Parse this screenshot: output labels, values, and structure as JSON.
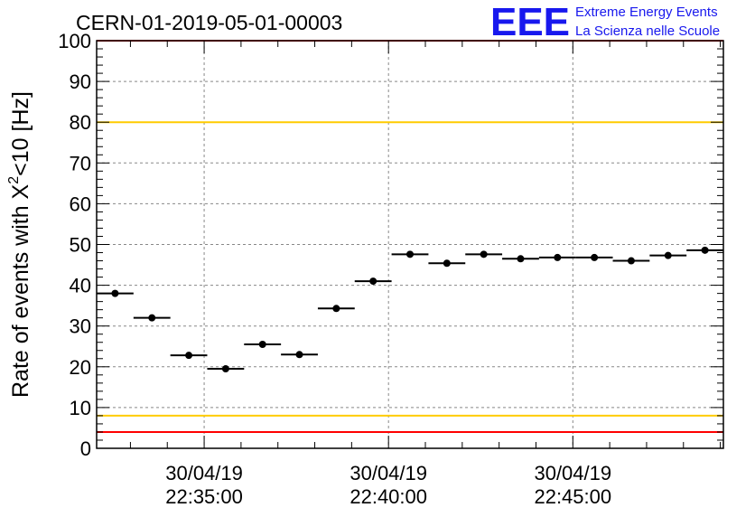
{
  "header": {
    "title": "CERN-01-2019-05-01-00003",
    "logo_text": "EEE",
    "logo_line1": "Extreme Energy Events",
    "logo_line2": "La Scienza nelle Scuole"
  },
  "chart_data": {
    "type": "scatter",
    "title": "CERN-01-2019-05-01-00003",
    "ylabel_main": "Rate of events with X",
    "ylabel_sup": "2",
    "ylabel_tail": "<10 [Hz]",
    "ylim": [
      0,
      100
    ],
    "y_ticks": [
      "0",
      "10",
      "20",
      "30",
      "40",
      "50",
      "60",
      "70",
      "80",
      "90",
      "100"
    ],
    "x_tick_labels": [
      {
        "date": "30/04/19",
        "time": "22:35:00"
      },
      {
        "date": "30/04/19",
        "time": "22:40:00"
      },
      {
        "date": "30/04/19",
        "time": "22:45:00"
      }
    ],
    "xlim": [
      "30/04/19 22:32:05",
      "30/04/19 22:49:05"
    ],
    "bin_width_seconds": 60,
    "series": [
      {
        "x": [
          "22:32:35",
          "22:33:35",
          "22:34:35",
          "22:35:35",
          "22:36:35",
          "22:37:35",
          "22:38:35",
          "22:39:35",
          "22:40:35",
          "22:41:35",
          "22:42:35",
          "22:43:35",
          "22:44:35",
          "22:45:35",
          "22:46:35",
          "22:47:35",
          "22:48:35"
        ],
        "values": [
          38.0,
          32.0,
          22.8,
          19.5,
          25.5,
          23.0,
          34.3,
          41.0,
          47.6,
          45.4,
          47.6,
          46.5,
          46.8,
          46.8,
          46.0,
          47.3,
          48.6
        ]
      }
    ],
    "reference_lines": [
      {
        "y": 80,
        "color": "#ffcc00"
      },
      {
        "y": 8,
        "color": "#ffcc00"
      },
      {
        "y": 4,
        "color": "#ff0000"
      },
      {
        "y": 100,
        "color": "#ff0000"
      }
    ],
    "grid": true,
    "marker_color": "#000000"
  }
}
